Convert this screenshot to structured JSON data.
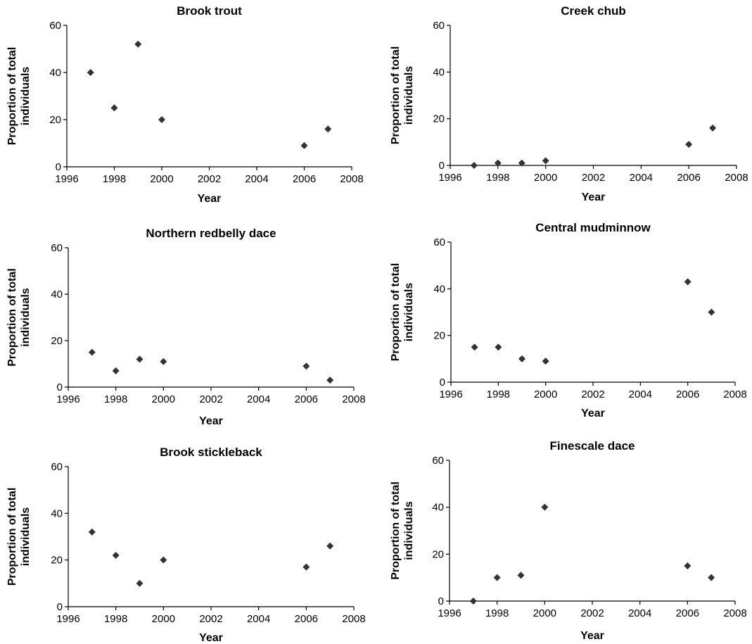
{
  "chart_data": [
    {
      "type": "scatter",
      "title": "Brook trout",
      "xlabel": "Year",
      "ylabel_lines": [
        "Proportion of total",
        "individuals"
      ],
      "xlim": [
        1996,
        2008
      ],
      "ylim": [
        0,
        60
      ],
      "xticks": [
        "1996",
        "1998",
        "2000",
        "2002",
        "2004",
        "2006",
        "2008"
      ],
      "yticks": [
        "0",
        "20",
        "40",
        "60"
      ],
      "x": [
        1997,
        1998,
        1999,
        2000,
        2006,
        2007
      ],
      "y": [
        40,
        25,
        52,
        20,
        9,
        16
      ],
      "marker_color": "#333333",
      "grid": false
    },
    {
      "type": "scatter",
      "title": "Creek chub",
      "xlabel": "Year",
      "ylabel_lines": [
        "Proportion of total",
        "individuals"
      ],
      "xlim": [
        1996,
        2008
      ],
      "ylim": [
        0,
        60
      ],
      "xticks": [
        "1996",
        "1998",
        "2000",
        "2002",
        "2004",
        "2006",
        "2008"
      ],
      "yticks": [
        "0",
        "20",
        "40",
        "60"
      ],
      "x": [
        1997,
        1998,
        1999,
        2000,
        2006,
        2007
      ],
      "y": [
        0,
        1,
        1,
        2,
        9,
        16
      ],
      "marker_color": "#333333",
      "grid": false
    },
    {
      "type": "scatter",
      "title": "Northern redbelly dace",
      "xlabel": "Year",
      "ylabel_lines": [
        "Proportion of total",
        "individuals"
      ],
      "xlim": [
        1996,
        2008
      ],
      "ylim": [
        0,
        60
      ],
      "xticks": [
        "1996",
        "1998",
        "2000",
        "2002",
        "2004",
        "2006",
        "2008"
      ],
      "yticks": [
        "0",
        "20",
        "40",
        "60"
      ],
      "x": [
        1997,
        1998,
        1999,
        2000,
        2006,
        2007
      ],
      "y": [
        15,
        7,
        12,
        11,
        9,
        3
      ],
      "marker_color": "#333333",
      "grid": false
    },
    {
      "type": "scatter",
      "title": "Central mudminnow",
      "xlabel": "Year",
      "ylabel_lines": [
        "Proportion of total",
        "individuals"
      ],
      "xlim": [
        1996,
        2008
      ],
      "ylim": [
        0,
        60
      ],
      "xticks": [
        "1996",
        "1998",
        "2000",
        "2002",
        "2004",
        "2006",
        "2008"
      ],
      "yticks": [
        "0",
        "20",
        "40",
        "60"
      ],
      "x": [
        1997,
        1998,
        1999,
        2000,
        2006,
        2007
      ],
      "y": [
        15,
        15,
        10,
        9,
        43,
        30
      ],
      "marker_color": "#333333",
      "grid": false
    },
    {
      "type": "scatter",
      "title": "Brook stickleback",
      "xlabel": "Year",
      "ylabel_lines": [
        "Proportion of total",
        "individuals"
      ],
      "xlim": [
        1996,
        2008
      ],
      "ylim": [
        0,
        60
      ],
      "xticks": [
        "1996",
        "1998",
        "2000",
        "2002",
        "2004",
        "2006",
        "2008"
      ],
      "yticks": [
        "0",
        "20",
        "40",
        "60"
      ],
      "x": [
        1997,
        1998,
        1999,
        2000,
        2006,
        2007
      ],
      "y": [
        32,
        22,
        10,
        20,
        17,
        26
      ],
      "marker_color": "#333333",
      "grid": false
    },
    {
      "type": "scatter",
      "title": "Finescale dace",
      "xlabel": "Year",
      "ylabel_lines": [
        "Proportion of total",
        "individuals"
      ],
      "xlim": [
        1996,
        2008
      ],
      "ylim": [
        0,
        60
      ],
      "xticks": [
        "1996",
        "1998",
        "2000",
        "2002",
        "2004",
        "2006",
        "2008"
      ],
      "yticks": [
        "0",
        "20",
        "40",
        "60"
      ],
      "x": [
        1997,
        1998,
        1999,
        2000,
        2006,
        2007
      ],
      "y": [
        0,
        10,
        11,
        40,
        15,
        10
      ],
      "marker_color": "#333333",
      "grid": false
    }
  ]
}
